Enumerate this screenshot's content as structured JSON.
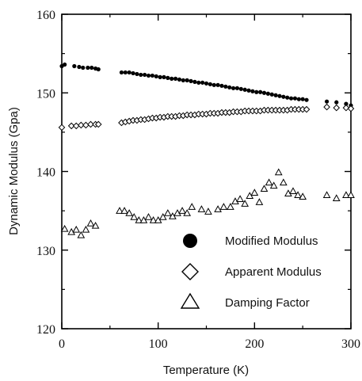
{
  "chart_data": {
    "type": "scatter",
    "xlabel": "Temperature (K)",
    "ylabel": "Dynamic Modulus (Gpa)",
    "xlim": [
      0,
      300
    ],
    "ylim": [
      120,
      160
    ],
    "xticks": [
      0,
      100,
      200,
      300
    ],
    "yticks": [
      120,
      130,
      140,
      150,
      160
    ],
    "grid": false,
    "legend_position": "bottom-right",
    "series": [
      {
        "name": "Modified Modulus",
        "marker": "filled-circle",
        "color": "#000000",
        "x": [
          0,
          3,
          13,
          18,
          22,
          27,
          31,
          35,
          38,
          62,
          66,
          70,
          74,
          78,
          82,
          86,
          90,
          94,
          98,
          102,
          106,
          110,
          114,
          118,
          122,
          126,
          130,
          134,
          138,
          142,
          146,
          150,
          154,
          158,
          162,
          166,
          170,
          174,
          178,
          182,
          186,
          190,
          194,
          198,
          202,
          206,
          210,
          214,
          218,
          222,
          226,
          230,
          234,
          238,
          242,
          246,
          250,
          254,
          275,
          285,
          295,
          300
        ],
        "values": [
          153.4,
          153.6,
          153.4,
          153.3,
          153.2,
          153.2,
          153.2,
          153.1,
          153.0,
          152.6,
          152.6,
          152.6,
          152.5,
          152.4,
          152.3,
          152.3,
          152.2,
          152.2,
          152.1,
          152.0,
          152.0,
          151.9,
          151.8,
          151.8,
          151.7,
          151.6,
          151.6,
          151.5,
          151.4,
          151.3,
          151.3,
          151.2,
          151.1,
          151.0,
          151.0,
          150.9,
          150.8,
          150.7,
          150.6,
          150.6,
          150.5,
          150.4,
          150.3,
          150.2,
          150.1,
          150.1,
          150.0,
          149.9,
          149.8,
          149.7,
          149.6,
          149.5,
          149.4,
          149.3,
          149.3,
          149.2,
          149.2,
          149.1,
          148.9,
          148.8,
          148.6,
          148.4
        ]
      },
      {
        "name": "Apparent Modulus",
        "marker": "open-diamond",
        "color": "#000000",
        "x": [
          0,
          10,
          15,
          20,
          25,
          30,
          35,
          38,
          62,
          66,
          70,
          74,
          78,
          82,
          86,
          90,
          94,
          98,
          102,
          106,
          110,
          114,
          118,
          122,
          126,
          130,
          134,
          138,
          142,
          146,
          150,
          154,
          158,
          162,
          166,
          170,
          174,
          178,
          182,
          186,
          190,
          194,
          198,
          202,
          206,
          210,
          214,
          218,
          222,
          226,
          230,
          234,
          238,
          242,
          246,
          250,
          254,
          275,
          285,
          295,
          300
        ],
        "values": [
          145.6,
          145.8,
          145.8,
          145.9,
          145.9,
          146.0,
          146.0,
          146.0,
          146.2,
          146.3,
          146.4,
          146.5,
          146.5,
          146.6,
          146.6,
          146.7,
          146.8,
          146.8,
          146.9,
          146.9,
          147.0,
          147.0,
          147.0,
          147.1,
          147.1,
          147.2,
          147.2,
          147.2,
          147.3,
          147.3,
          147.3,
          147.4,
          147.4,
          147.4,
          147.5,
          147.5,
          147.5,
          147.6,
          147.6,
          147.6,
          147.7,
          147.7,
          147.7,
          147.7,
          147.7,
          147.8,
          147.8,
          147.8,
          147.8,
          147.8,
          147.8,
          147.8,
          147.9,
          147.9,
          147.9,
          147.9,
          147.9,
          148.2,
          148.1,
          148.1,
          148.0
        ]
      },
      {
        "name": "Damping Factor",
        "marker": "open-triangle",
        "color": "#000000",
        "x": [
          3,
          10,
          15,
          20,
          25,
          30,
          35,
          60,
          65,
          70,
          75,
          80,
          85,
          90,
          95,
          100,
          105,
          110,
          115,
          120,
          125,
          130,
          135,
          145,
          152,
          162,
          168,
          175,
          180,
          185,
          190,
          195,
          200,
          205,
          210,
          215,
          220,
          225,
          230,
          235,
          240,
          245,
          250,
          275,
          285,
          295,
          300
        ],
        "values": [
          132.7,
          132.3,
          132.6,
          131.9,
          132.6,
          133.4,
          133.1,
          135.0,
          135.0,
          134.7,
          134.2,
          133.8,
          133.8,
          134.2,
          133.8,
          133.8,
          134.2,
          134.7,
          134.3,
          134.7,
          135.0,
          134.7,
          135.5,
          135.2,
          134.9,
          135.2,
          135.5,
          135.5,
          136.2,
          136.5,
          135.9,
          136.9,
          137.3,
          136.1,
          137.8,
          138.6,
          138.2,
          139.9,
          138.6,
          137.2,
          137.5,
          137.0,
          136.8,
          137.0,
          136.6,
          137.0,
          137.0
        ]
      }
    ]
  },
  "legend": {
    "items": [
      {
        "label": "Modified Modulus",
        "marker": "filled-circle"
      },
      {
        "label": "Apparent Modulus",
        "marker": "open-diamond"
      },
      {
        "label": "Damping Factor",
        "marker": "open-triangle"
      }
    ]
  }
}
